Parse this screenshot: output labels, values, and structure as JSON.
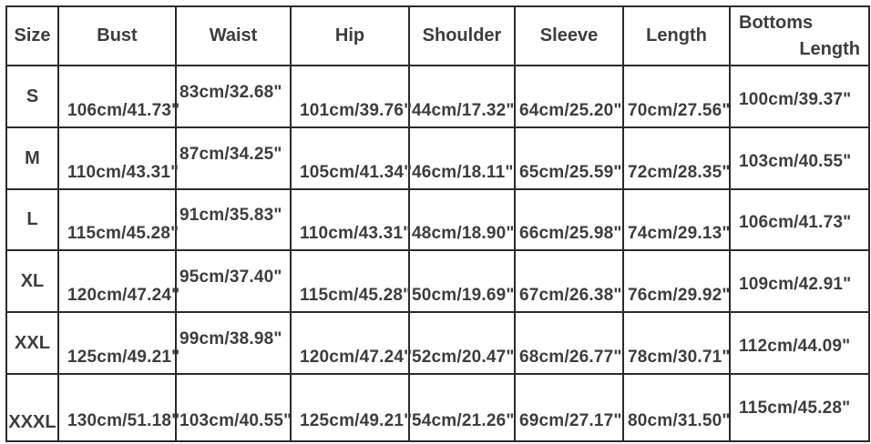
{
  "colors": {
    "text": "#3d3d3d",
    "border": "#2b2b2b",
    "background": "#ffffff"
  },
  "table": {
    "headers": {
      "size": "Size",
      "bust": "Bust",
      "waist": "Waist",
      "hip": "Hip",
      "shoulder": "Shoulder",
      "sleeve": "Sleeve",
      "length": "Length",
      "bottoms_line1": "Bottoms",
      "bottoms_line2": "Length"
    },
    "rows": [
      {
        "size": "S",
        "bust": "106cm/41.73\"",
        "waist": "83cm/32.68\"",
        "hip": "101cm/39.76\"",
        "shoulder": "44cm/17.32\"",
        "sleeve": "64cm/25.20\"",
        "length": "70cm/27.56\"",
        "bottoms": "100cm/39.37\""
      },
      {
        "size": "M",
        "bust": "110cm/43.31\"",
        "waist": "87cm/34.25\"",
        "hip": "105cm/41.34\"",
        "shoulder": "46cm/18.11\"",
        "sleeve": "65cm/25.59\"",
        "length": "72cm/28.35\"",
        "bottoms": "103cm/40.55\""
      },
      {
        "size": "L",
        "bust": "115cm/45.28\"",
        "waist": "91cm/35.83\"",
        "hip": "110cm/43.31\"",
        "shoulder": "48cm/18.90\"",
        "sleeve": "66cm/25.98\"",
        "length": "74cm/29.13\"",
        "bottoms": "106cm/41.73\""
      },
      {
        "size": "XL",
        "bust": "120cm/47.24\"",
        "waist": "95cm/37.40\"",
        "hip": "115cm/45.28\"",
        "shoulder": "50cm/19.69\"",
        "sleeve": "67cm/26.38\"",
        "length": "76cm/29.92\"",
        "bottoms": "109cm/42.91\""
      },
      {
        "size": "XXL",
        "bust": "125cm/49.21\"",
        "waist": "99cm/38.98\"",
        "hip": "120cm/47.24\"",
        "shoulder": "52cm/20.47\"",
        "sleeve": "68cm/26.77\"",
        "length": "78cm/30.71\"",
        "bottoms": "112cm/44.09\""
      },
      {
        "size": "XXXL",
        "bust": "130cm/51.18\"",
        "waist": "103cm/40.55\"",
        "hip": "125cm/49.21\"",
        "shoulder": "54cm/21.26\"",
        "sleeve": "69cm/27.17\"",
        "length": "80cm/31.50\"",
        "bottoms": "115cm/45.28\""
      }
    ]
  },
  "chart_data": {
    "type": "table",
    "title": "Garment size chart",
    "columns": [
      "Size",
      "Bust",
      "Waist",
      "Hip",
      "Shoulder",
      "Sleeve",
      "Length",
      "Bottoms Length"
    ],
    "rows": [
      [
        "S",
        "106cm/41.73\"",
        "83cm/32.68\"",
        "101cm/39.76\"",
        "44cm/17.32\"",
        "64cm/25.20\"",
        "70cm/27.56\"",
        "100cm/39.37\""
      ],
      [
        "M",
        "110cm/43.31\"",
        "87cm/34.25\"",
        "105cm/41.34\"",
        "46cm/18.11\"",
        "65cm/25.59\"",
        "72cm/28.35\"",
        "103cm/40.55\""
      ],
      [
        "L",
        "115cm/45.28\"",
        "91cm/35.83\"",
        "110cm/43.31\"",
        "48cm/18.90\"",
        "66cm/25.98\"",
        "74cm/29.13\"",
        "106cm/41.73\""
      ],
      [
        "XL",
        "120cm/47.24\"",
        "95cm/37.40\"",
        "115cm/45.28\"",
        "50cm/19.69\"",
        "67cm/26.38\"",
        "76cm/29.92\"",
        "109cm/42.91\""
      ],
      [
        "XXL",
        "125cm/49.21\"",
        "99cm/38.98\"",
        "120cm/47.24\"",
        "52cm/20.47\"",
        "68cm/26.77\"",
        "78cm/30.71\"",
        "112cm/44.09\""
      ],
      [
        "XXXL",
        "130cm/51.18\"",
        "103cm/40.55\"",
        "125cm/49.21\"",
        "54cm/21.26\"",
        "69cm/27.17\"",
        "80cm/31.50\"",
        "115cm/45.28\""
      ]
    ]
  }
}
